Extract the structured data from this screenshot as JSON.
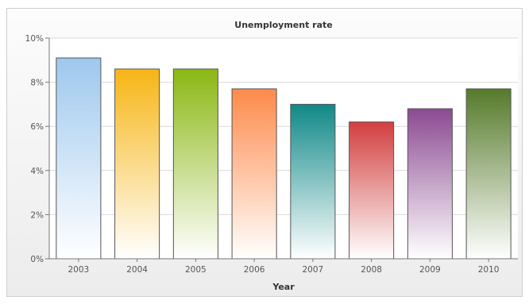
{
  "chart_data": {
    "type": "bar",
    "title": "Unemployment rate",
    "xlabel": "Year",
    "ylabel": "",
    "ylim": [
      0,
      10
    ],
    "y_ticks": [
      "0%",
      "2%",
      "4%",
      "6%",
      "8%",
      "10%"
    ],
    "categories": [
      "2003",
      "2004",
      "2005",
      "2006",
      "2007",
      "2008",
      "2009",
      "2010"
    ],
    "values": [
      9.1,
      8.6,
      8.6,
      7.7,
      7.0,
      6.2,
      6.8,
      7.7
    ],
    "colors": [
      "#9ec8ee",
      "#f6b515",
      "#8ab713",
      "#fd8a4a",
      "#108888",
      "#d23f3f",
      "#8c4a92",
      "#557a2a"
    ],
    "grid": true
  }
}
